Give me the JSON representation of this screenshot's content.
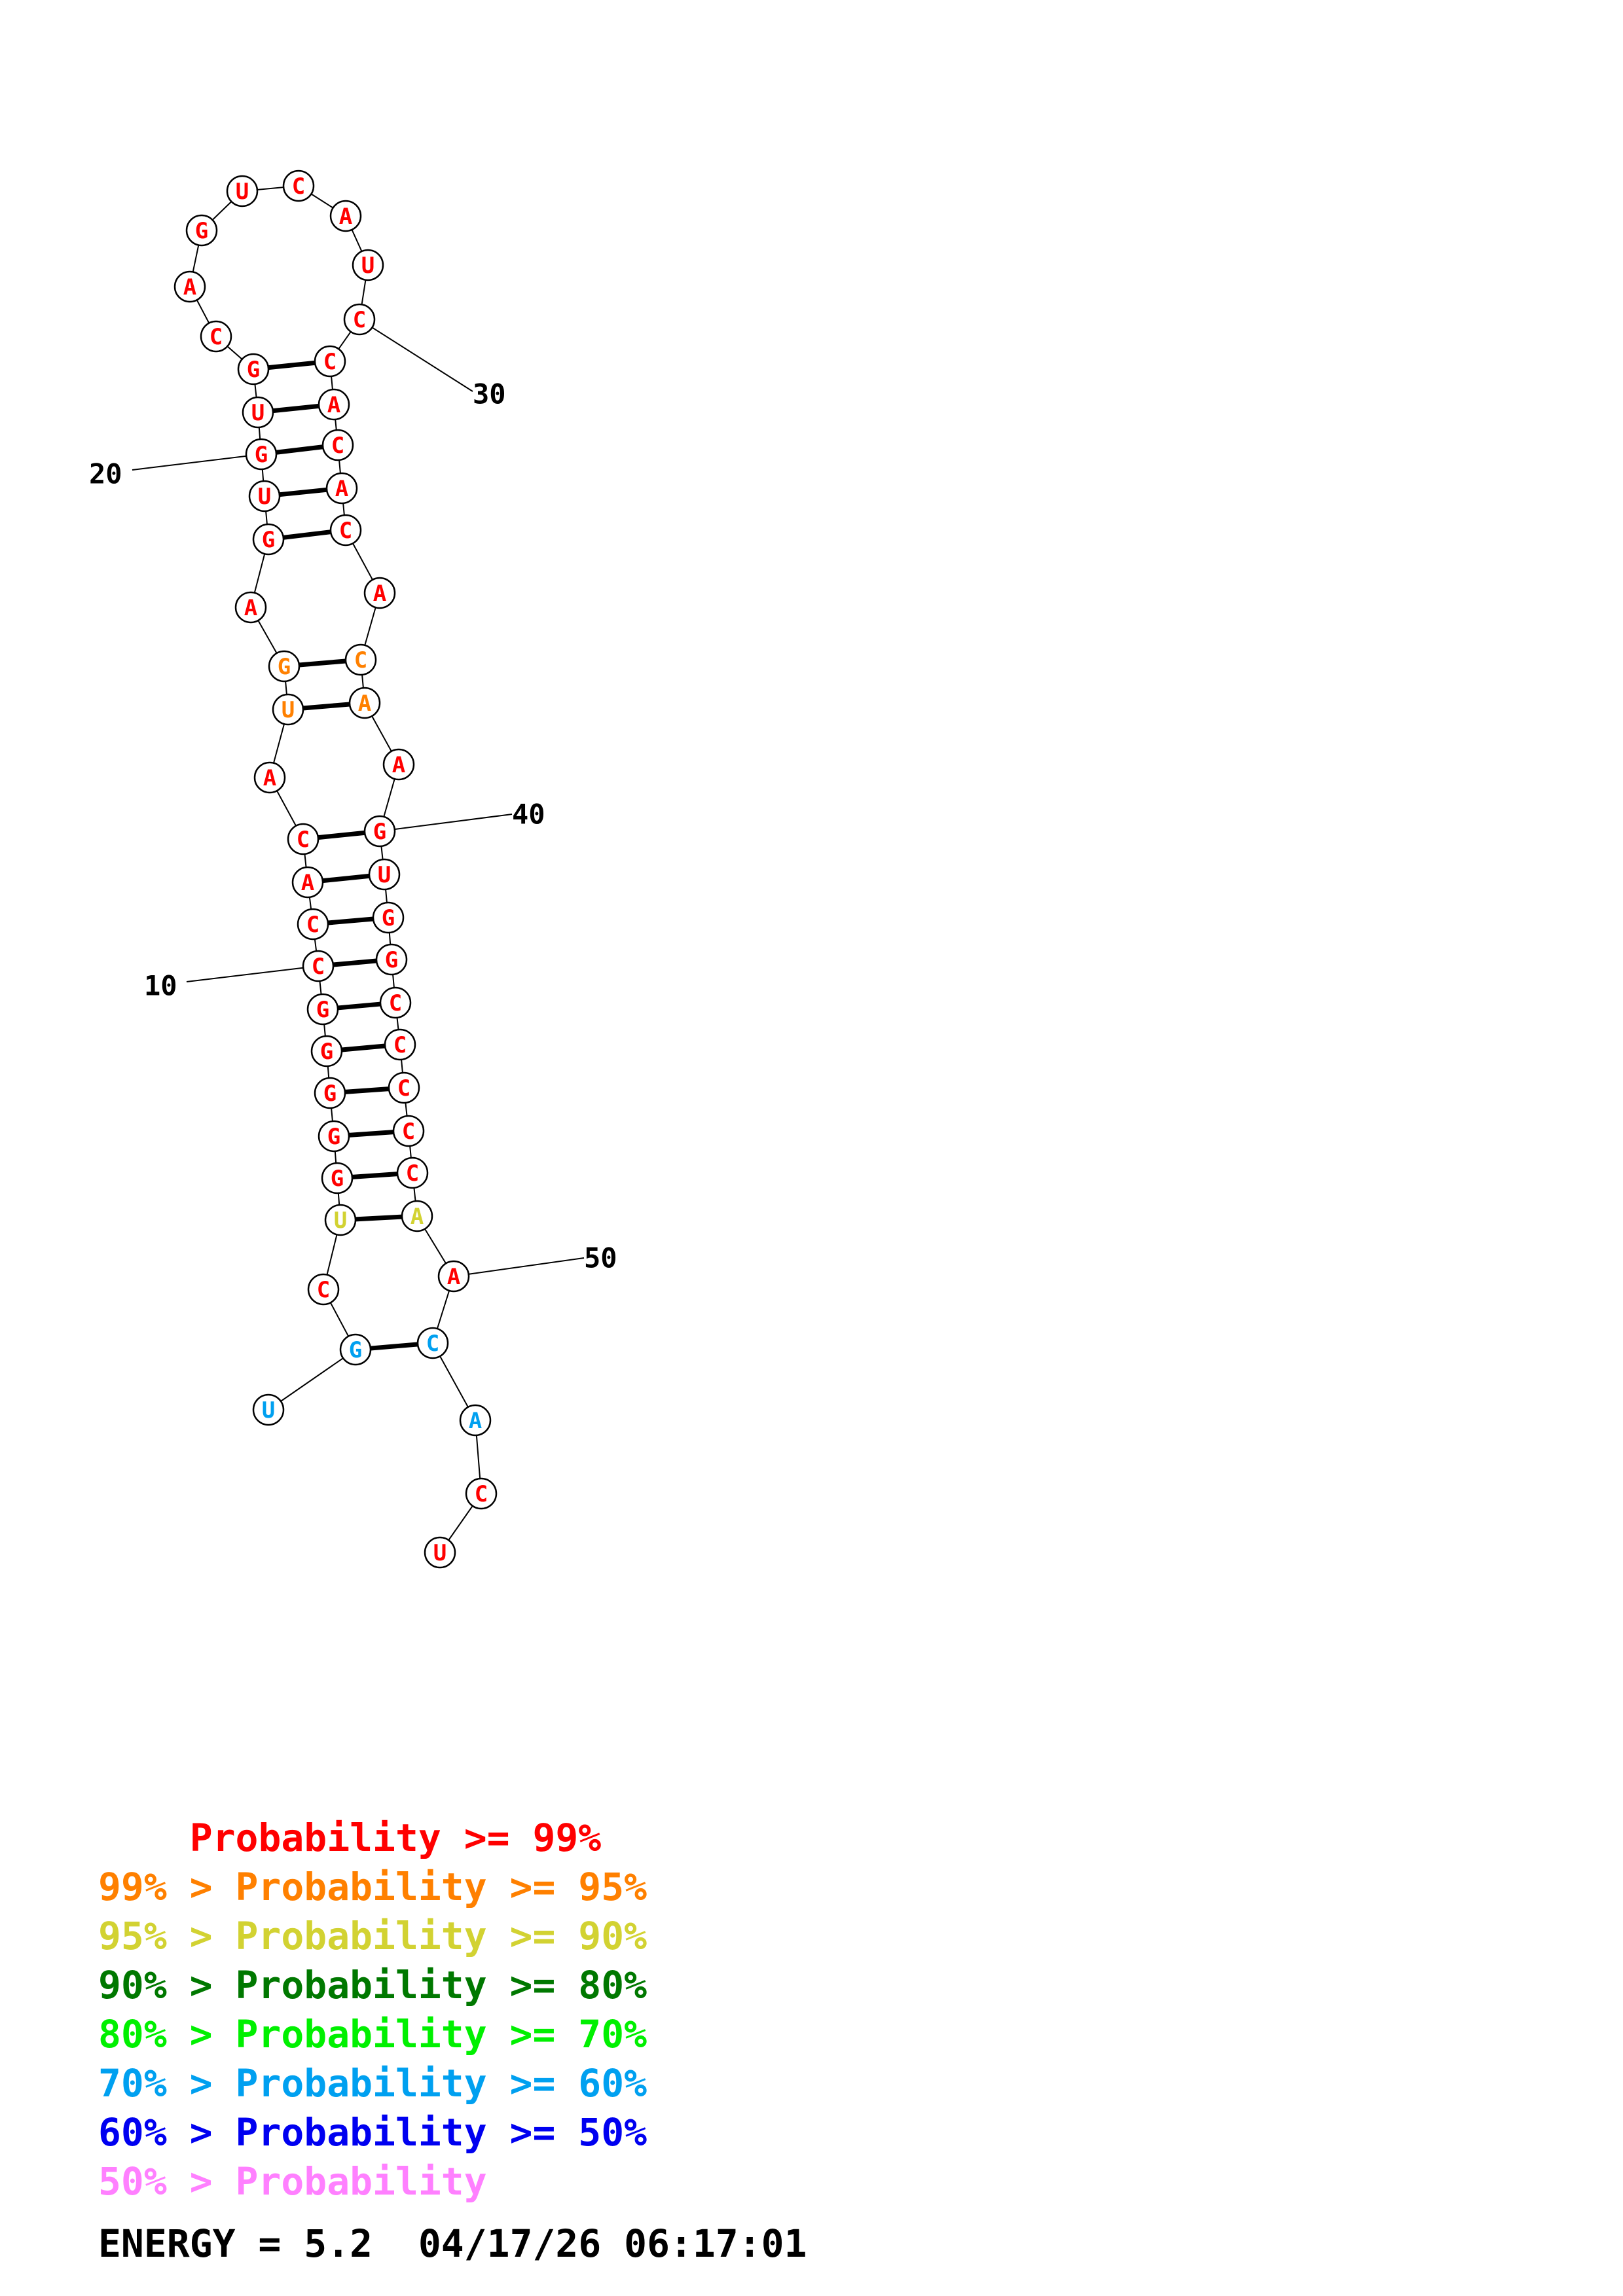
{
  "colors": {
    "p99": "#ff0000",
    "p95": "#ff8000",
    "p90": "#d2d232",
    "p80": "#007800",
    "p70": "#00f000",
    "p60": "#00a0f0",
    "p50": "#0000f0",
    "plow": "#ff80ff"
  },
  "sequence": [
    {
      "n": 1,
      "base": "U",
      "c": "p60"
    },
    {
      "n": 2,
      "base": "G",
      "c": "p60"
    },
    {
      "n": 3,
      "base": "C",
      "c": "p99"
    },
    {
      "n": 4,
      "base": "U",
      "c": "p90"
    },
    {
      "n": 5,
      "base": "G",
      "c": "p99"
    },
    {
      "n": 6,
      "base": "G",
      "c": "p99"
    },
    {
      "n": 7,
      "base": "G",
      "c": "p99"
    },
    {
      "n": 8,
      "base": "G",
      "c": "p99"
    },
    {
      "n": 9,
      "base": "G",
      "c": "p99"
    },
    {
      "n": 10,
      "base": "C",
      "c": "p99"
    },
    {
      "n": 11,
      "base": "C",
      "c": "p99"
    },
    {
      "n": 12,
      "base": "A",
      "c": "p99"
    },
    {
      "n": 13,
      "base": "C",
      "c": "p99"
    },
    {
      "n": 14,
      "base": "A",
      "c": "p99"
    },
    {
      "n": 15,
      "base": "U",
      "c": "p95"
    },
    {
      "n": 16,
      "base": "G",
      "c": "p95"
    },
    {
      "n": 17,
      "base": "A",
      "c": "p99"
    },
    {
      "n": 18,
      "base": "G",
      "c": "p99"
    },
    {
      "n": 19,
      "base": "U",
      "c": "p99"
    },
    {
      "n": 20,
      "base": "G",
      "c": "p99"
    },
    {
      "n": 21,
      "base": "U",
      "c": "p99"
    },
    {
      "n": 22,
      "base": "G",
      "c": "p99"
    },
    {
      "n": 23,
      "base": "C",
      "c": "p99"
    },
    {
      "n": 24,
      "base": "A",
      "c": "p99"
    },
    {
      "n": 25,
      "base": "G",
      "c": "p99"
    },
    {
      "n": 26,
      "base": "U",
      "c": "p99"
    },
    {
      "n": 27,
      "base": "C",
      "c": "p99"
    },
    {
      "n": 28,
      "base": "A",
      "c": "p99"
    },
    {
      "n": 29,
      "base": "U",
      "c": "p99"
    },
    {
      "n": 30,
      "base": "C",
      "c": "p99"
    },
    {
      "n": 31,
      "base": "C",
      "c": "p99"
    },
    {
      "n": 32,
      "base": "A",
      "c": "p99"
    },
    {
      "n": 33,
      "base": "C",
      "c": "p99"
    },
    {
      "n": 34,
      "base": "A",
      "c": "p99"
    },
    {
      "n": 35,
      "base": "C",
      "c": "p99"
    },
    {
      "n": 36,
      "base": "A",
      "c": "p99"
    },
    {
      "n": 37,
      "base": "C",
      "c": "p95"
    },
    {
      "n": 38,
      "base": "A",
      "c": "p95"
    },
    {
      "n": 39,
      "base": "A",
      "c": "p99"
    },
    {
      "n": 40,
      "base": "G",
      "c": "p99"
    },
    {
      "n": 41,
      "base": "U",
      "c": "p99"
    },
    {
      "n": 42,
      "base": "G",
      "c": "p99"
    },
    {
      "n": 43,
      "base": "G",
      "c": "p99"
    },
    {
      "n": 44,
      "base": "C",
      "c": "p99"
    },
    {
      "n": 45,
      "base": "C",
      "c": "p99"
    },
    {
      "n": 46,
      "base": "C",
      "c": "p99"
    },
    {
      "n": 47,
      "base": "C",
      "c": "p99"
    },
    {
      "n": 48,
      "base": "C",
      "c": "p99"
    },
    {
      "n": 49,
      "base": "A",
      "c": "p90"
    },
    {
      "n": 50,
      "base": "A",
      "c": "p99"
    },
    {
      "n": 51,
      "base": "C",
      "c": "p60"
    },
    {
      "n": 52,
      "base": "A",
      "c": "p60"
    },
    {
      "n": 53,
      "base": "C",
      "c": "p99"
    },
    {
      "n": 54,
      "base": "U",
      "c": "p99"
    }
  ],
  "pairs": [
    [
      2,
      51
    ],
    [
      4,
      49
    ],
    [
      5,
      48
    ],
    [
      6,
      47
    ],
    [
      7,
      46
    ],
    [
      8,
      45
    ],
    [
      9,
      44
    ],
    [
      10,
      43
    ],
    [
      11,
      42
    ],
    [
      12,
      41
    ],
    [
      13,
      40
    ],
    [
      15,
      38
    ],
    [
      16,
      37
    ],
    [
      18,
      35
    ],
    [
      19,
      34
    ],
    [
      20,
      33
    ],
    [
      21,
      32
    ],
    [
      22,
      31
    ]
  ],
  "position_labels": [
    {
      "n": 10,
      "text": "10"
    },
    {
      "n": 20,
      "text": "20"
    },
    {
      "n": 30,
      "text": "30"
    },
    {
      "n": 40,
      "text": "40"
    },
    {
      "n": 50,
      "text": "50"
    }
  ],
  "legend": [
    {
      "prefix": "    ",
      "text": "Probability >= 99%",
      "c": "p99"
    },
    {
      "prefix": "99% > ",
      "text": "Probability >= 95%",
      "c": "p95"
    },
    {
      "prefix": "95% > ",
      "text": "Probability >= 90%",
      "c": "p90"
    },
    {
      "prefix": "90% > ",
      "text": "Probability >= 80%",
      "c": "p80"
    },
    {
      "prefix": "80% > ",
      "text": "Probability >= 70%",
      "c": "p70"
    },
    {
      "prefix": "70% > ",
      "text": "Probability >= 60%",
      "c": "p60"
    },
    {
      "prefix": "60% > ",
      "text": "Probability >= 50%",
      "c": "p50"
    },
    {
      "prefix": "50% > ",
      "text": "Probability",
      "c": "plow"
    }
  ],
  "footer": {
    "energy_label": "ENERGY = ",
    "energy_value": "5.2",
    "timestamp": "04/17/26 06:17:01"
  }
}
